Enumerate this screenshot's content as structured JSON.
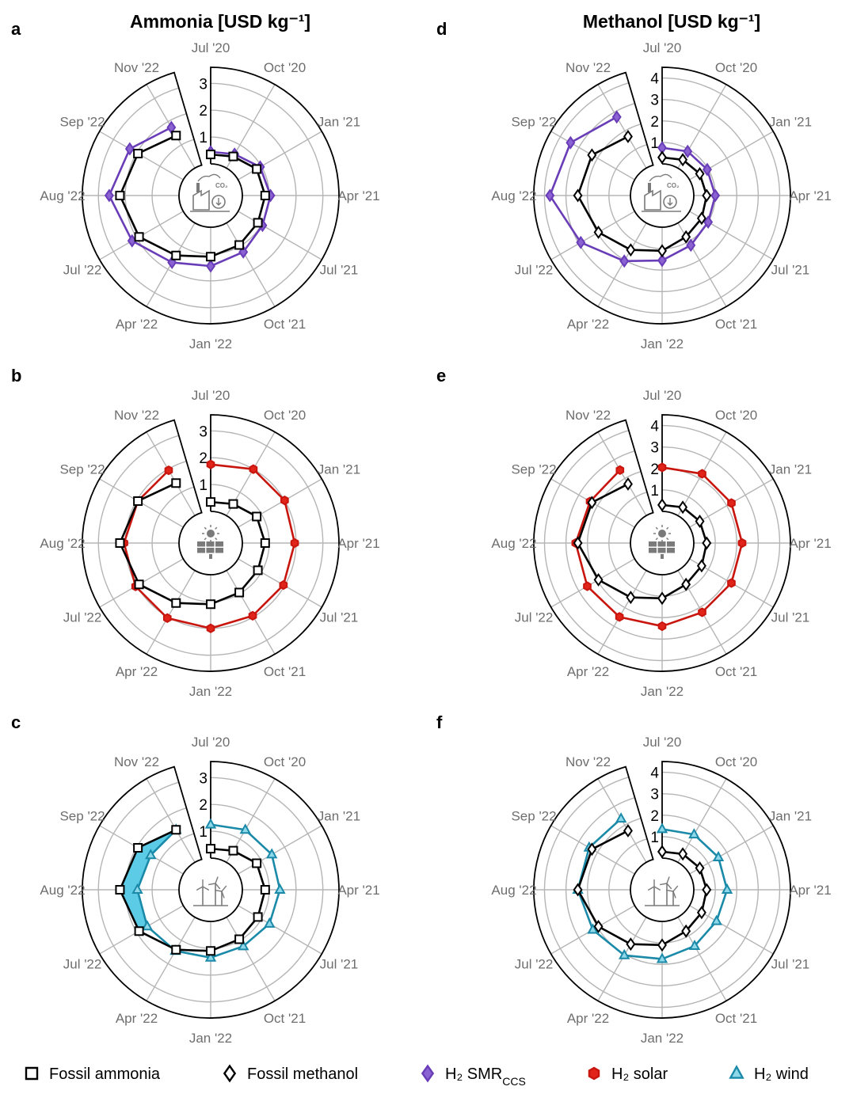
{
  "titles": {
    "ammonia": "Ammonia [USD kg⁻¹]",
    "methanol": "Methanol [USD kg⁻¹]"
  },
  "months": [
    "Jul '20",
    "Oct '20",
    "Jan '21",
    "Apr '21",
    "Jul '21",
    "Oct '21",
    "Jan '22",
    "Apr '22",
    "Jul '22",
    "Aug '22",
    "Sep '22",
    "Nov '22"
  ],
  "colors": {
    "fossil": "#000000",
    "smr": "#6a3db8",
    "solar": "#c8160e",
    "wind": "#1a8aa8",
    "wind_fill": "#5ccbe6",
    "grid": "#b5b5b5",
    "month_text": "#6e6e6e"
  },
  "icons": {
    "a": "factory-co2-capture-icon",
    "d": "factory-co2-capture-icon",
    "b": "solar-panel-icon",
    "e": "solar-panel-icon",
    "c": "wind-turbine-icon",
    "f": "wind-turbine-icon"
  },
  "legend": [
    {
      "label": "Fossil ammonia",
      "marker": "square",
      "color_key": "fossil"
    },
    {
      "label": "Fossil methanol",
      "marker": "diamond",
      "color_key": "fossil"
    },
    {
      "label": "H₂ SMR",
      "sub": "CCS",
      "marker": "diamond",
      "color_key": "smr"
    },
    {
      "label": "H₂ solar",
      "marker": "hexagon",
      "color_key": "solar"
    },
    {
      "label": "H₂ wind",
      "marker": "triangle",
      "color_key": "wind"
    }
  ],
  "chart_data": [
    {
      "panel": "a",
      "type": "radar",
      "title": "Ammonia [USD kg⁻¹]",
      "theta": [
        "Jul '20",
        "Oct '20",
        "Jan '21",
        "Apr '21",
        "Jul '21",
        "Oct '21",
        "Jan '22",
        "Apr '22",
        "Jul '22",
        "Aug '22",
        "Sep '22",
        "Nov '22"
      ],
      "ticks": [
        1,
        2,
        3
      ],
      "rmax": 3.6,
      "series": [
        {
          "name": "Fossil ammonia",
          "marker": "square",
          "color_key": "fossil",
          "values": [
            0.35,
            0.5,
            0.8,
            0.85,
            0.85,
            0.95,
            1.1,
            1.4,
            1.9,
            2.2,
            1.95,
            1.4
          ]
        },
        {
          "name": "H₂ SMR₍ᴄᴄₛ₎",
          "marker": "diamond",
          "color_key": "smr",
          "values": [
            0.45,
            0.6,
            0.95,
            1.05,
            1.05,
            1.25,
            1.45,
            1.7,
            2.2,
            2.6,
            2.3,
            1.75
          ]
        }
      ]
    },
    {
      "panel": "b",
      "type": "radar",
      "title": "",
      "theta": [
        "Jul '20",
        "Oct '20",
        "Jan '21",
        "Apr '21",
        "Jul '21",
        "Oct '21",
        "Jan '22",
        "Apr '22",
        "Jul '22",
        "Aug '22",
        "Sep '22",
        "Nov '22"
      ],
      "ticks": [
        1,
        2,
        3
      ],
      "rmax": 3.6,
      "series": [
        {
          "name": "Fossil ammonia",
          "marker": "square",
          "color_key": "fossil",
          "values": [
            0.35,
            0.5,
            0.8,
            0.85,
            0.85,
            0.95,
            1.1,
            1.4,
            1.9,
            2.2,
            1.95,
            1.4
          ]
        },
        {
          "name": "H₂ solar",
          "marker": "hexagon",
          "color_key": "solar",
          "values": [
            1.75,
            2.0,
            2.0,
            1.95,
            1.95,
            1.95,
            2.0,
            2.05,
            2.05,
            2.05,
            1.95,
            1.95
          ]
        }
      ]
    },
    {
      "panel": "c",
      "type": "radar",
      "title": "",
      "theta": [
        "Jul '20",
        "Oct '20",
        "Jan '21",
        "Apr '21",
        "Jul '21",
        "Oct '21",
        "Jan '22",
        "Apr '22",
        "Jul '22",
        "Aug '22",
        "Sep '22",
        "Nov '22"
      ],
      "ticks": [
        1,
        2,
        3
      ],
      "rmax": 3.6,
      "series": [
        {
          "name": "Fossil ammonia",
          "marker": "square",
          "color_key": "fossil",
          "values": [
            0.35,
            0.5,
            0.8,
            0.85,
            0.85,
            0.95,
            1.1,
            1.4,
            1.9,
            2.2,
            1.95,
            1.4
          ]
        },
        {
          "name": "H₂ wind",
          "marker": "triangle",
          "color_key": "wind",
          "values": [
            1.25,
            1.4,
            1.45,
            1.4,
            1.35,
            1.25,
            1.35,
            1.45,
            1.55,
            1.55,
            1.4,
            1.4
          ]
        }
      ]
    },
    {
      "panel": "d",
      "type": "radar",
      "title": "Methanol [USD kg⁻¹]",
      "theta": [
        "Jul '20",
        "Oct '20",
        "Jan '21",
        "Apr '21",
        "Jul '21",
        "Oct '21",
        "Jan '22",
        "Apr '22",
        "Jul '22",
        "Aug '22",
        "Sep '22",
        "Nov '22"
      ],
      "ticks": [
        1,
        2,
        3,
        4
      ],
      "rmax": 4.5,
      "series": [
        {
          "name": "Fossil methanol",
          "marker": "diamond",
          "color_key": "fossil",
          "values": [
            0.3,
            0.45,
            0.55,
            0.6,
            0.65,
            0.75,
            1.1,
            1.45,
            1.95,
            2.45,
            2.3,
            1.7
          ]
        },
        {
          "name": "H₂ SMR₍ᴄᴄₛ₎",
          "marker": "diamond",
          "color_key": "smr",
          "values": [
            0.75,
            0.9,
            0.95,
            1.0,
            1.0,
            1.2,
            1.55,
            2.05,
            2.9,
            3.75,
            3.45,
            2.75
          ]
        }
      ]
    },
    {
      "panel": "e",
      "type": "radar",
      "title": "",
      "theta": [
        "Jul '20",
        "Oct '20",
        "Jan '21",
        "Apr '21",
        "Jul '21",
        "Oct '21",
        "Jan '22",
        "Apr '22",
        "Jul '22",
        "Aug '22",
        "Sep '22",
        "Nov '22"
      ],
      "ticks": [
        1,
        2,
        3,
        4
      ],
      "rmax": 4.5,
      "series": [
        {
          "name": "Fossil methanol",
          "marker": "diamond",
          "color_key": "fossil",
          "values": [
            0.3,
            0.45,
            0.55,
            0.6,
            0.65,
            0.75,
            1.1,
            1.45,
            1.95,
            2.45,
            2.3,
            1.7
          ]
        },
        {
          "name": "H₂ solar",
          "marker": "hexagon",
          "color_key": "solar",
          "values": [
            2.05,
            2.25,
            2.25,
            2.25,
            2.25,
            2.25,
            2.4,
            2.5,
            2.55,
            2.55,
            2.4,
            2.45
          ]
        }
      ]
    },
    {
      "panel": "f",
      "type": "radar",
      "title": "",
      "theta": [
        "Jul '20",
        "Oct '20",
        "Jan '21",
        "Apr '21",
        "Jul '21",
        "Oct '21",
        "Jan '22",
        "Apr '22",
        "Jul '22",
        "Aug '22",
        "Sep '22",
        "Nov '22"
      ],
      "ticks": [
        1,
        2,
        3,
        4
      ],
      "rmax": 4.5,
      "series": [
        {
          "name": "Fossil methanol",
          "marker": "diamond",
          "color_key": "fossil",
          "values": [
            0.3,
            0.45,
            0.55,
            0.6,
            0.65,
            0.75,
            1.1,
            1.45,
            1.95,
            2.45,
            2.3,
            1.7
          ]
        },
        {
          "name": "H₂ wind",
          "marker": "triangle",
          "color_key": "wind",
          "values": [
            1.35,
            1.5,
            1.55,
            1.55,
            1.45,
            1.55,
            1.75,
            2.05,
            2.25,
            2.45,
            2.45,
            2.35
          ],
          "fill_between_fossil_when_higher": true
        }
      ]
    }
  ]
}
